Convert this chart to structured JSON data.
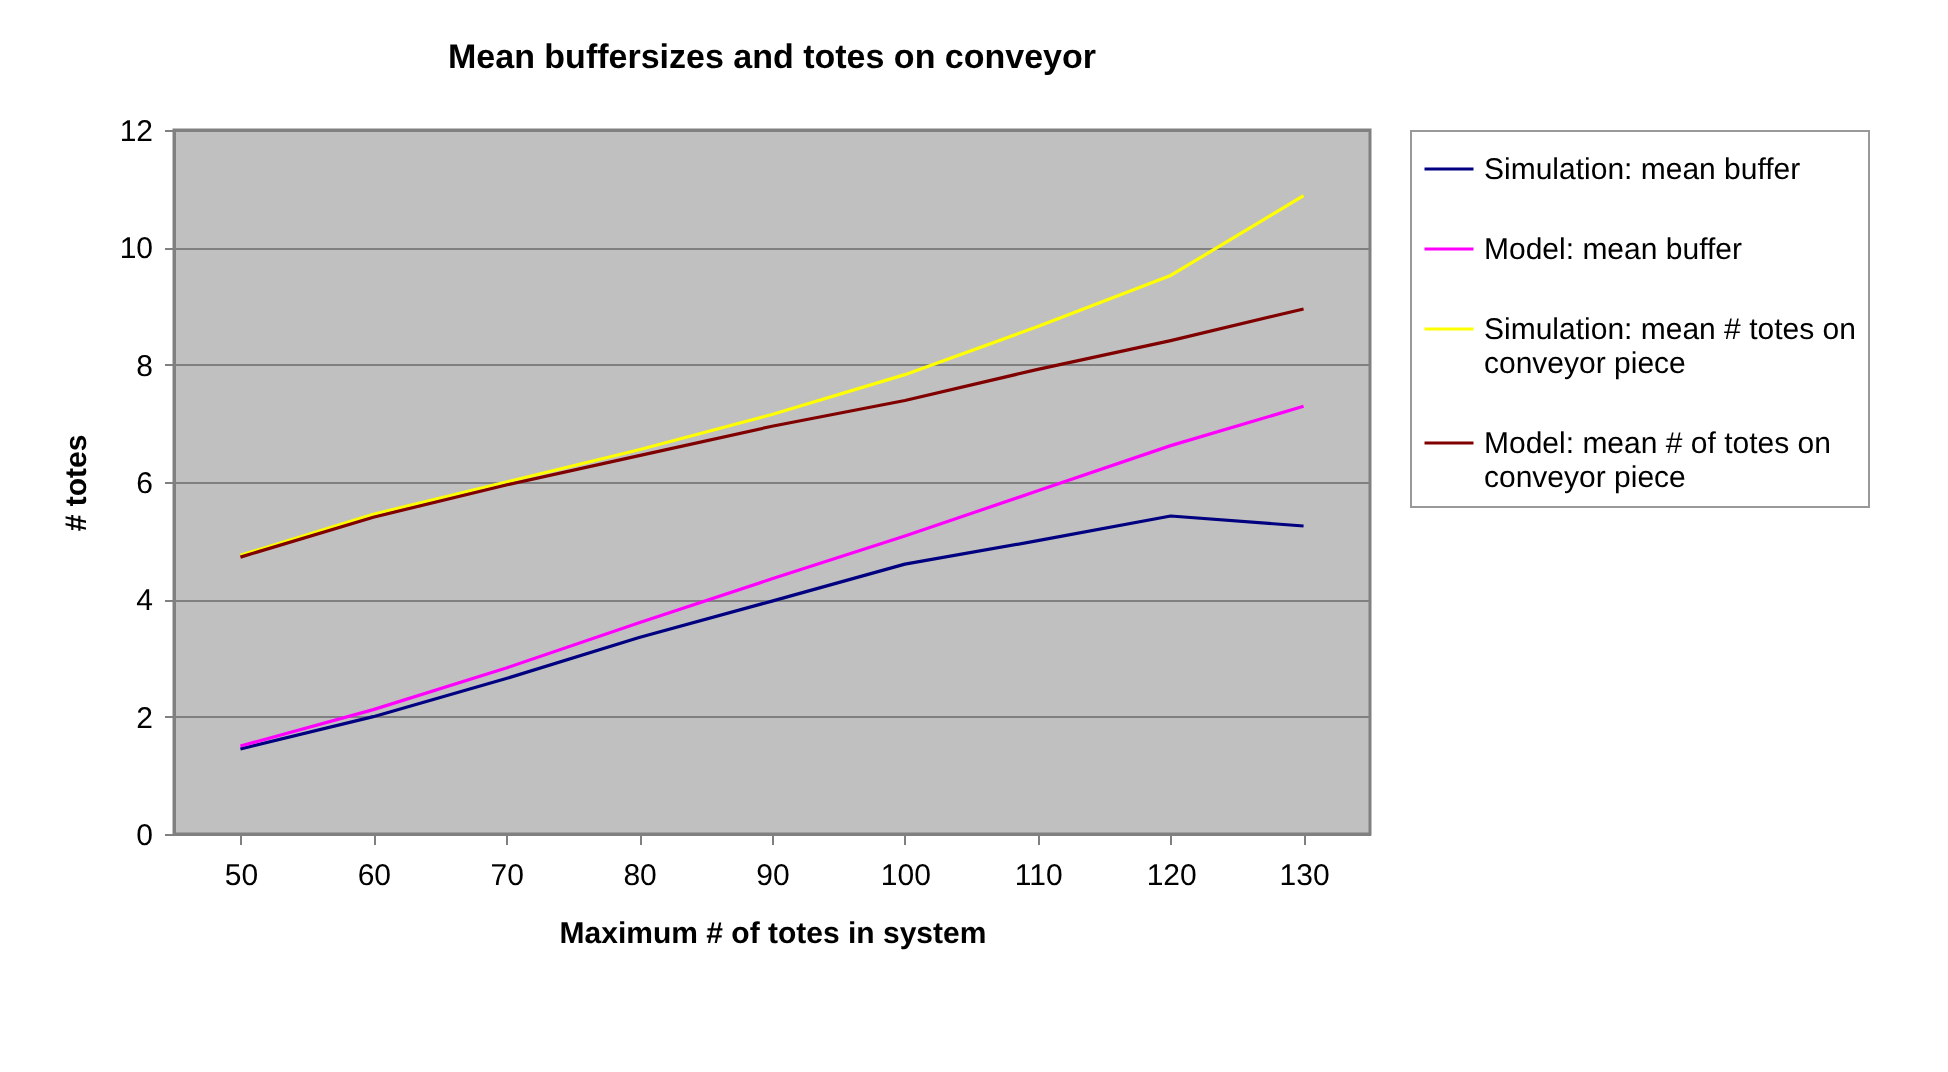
{
  "chart_data": {
    "type": "line",
    "title": "Mean buffersizes and totes on conveyor",
    "xlabel": "Maximum # of totes in system",
    "ylabel": "# totes",
    "categories": [
      "50",
      "60",
      "70",
      "80",
      "90",
      "100",
      "110",
      "120",
      "130"
    ],
    "series": [
      {
        "name": "Simulation: mean buffer",
        "color": "#000080",
        "values": [
          1.45,
          2.0,
          2.65,
          3.35,
          3.97,
          4.6,
          5.0,
          5.42,
          5.25
        ]
      },
      {
        "name": "Model: mean buffer",
        "color": "#ff00ff",
        "values": [
          1.5,
          2.12,
          2.83,
          3.6,
          4.35,
          5.08,
          5.85,
          6.62,
          7.29
        ]
      },
      {
        "name": "Simulation: mean # totes on conveyor piece",
        "color": "#ffff00",
        "values": [
          4.75,
          5.45,
          6.0,
          6.55,
          7.15,
          7.83,
          8.65,
          9.52,
          10.88
        ]
      },
      {
        "name": "Model: mean # of totes on conveyor piece",
        "color": "#800000",
        "values": [
          4.72,
          5.4,
          5.95,
          6.45,
          6.95,
          7.39,
          7.92,
          8.41,
          8.95
        ]
      }
    ],
    "ylim": [
      0,
      12
    ],
    "yticks": [
      0,
      2,
      4,
      6,
      8,
      10,
      12
    ],
    "grid": "y",
    "legend": "right"
  }
}
